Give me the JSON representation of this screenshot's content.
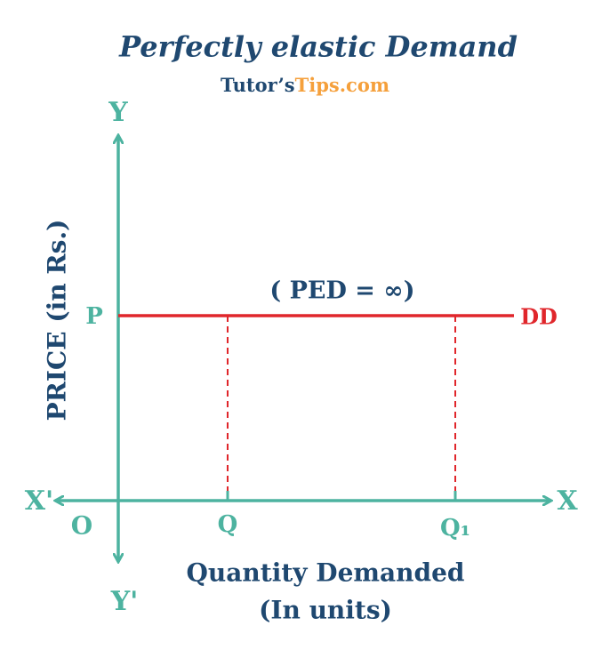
{
  "header": {
    "title": "Perfectly elastic Demand",
    "brand_left": "Tutor’s",
    "brand_right": "Tips.com"
  },
  "axes": {
    "y_top": "Y",
    "y_bottom": "Y'",
    "x_right": "X",
    "x_left": "X'",
    "origin": "O",
    "y_label": "PRICE (in Rs.)",
    "x_label_line1": "Quantity Demanded",
    "x_label_line2": "(In units)"
  },
  "points": {
    "price": "P",
    "q": "Q",
    "q1": "Q₁"
  },
  "curve": {
    "label": "DD",
    "annotation": "( PED = ∞)"
  }
}
